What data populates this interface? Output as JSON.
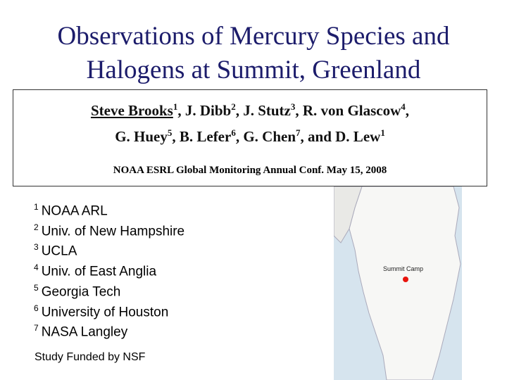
{
  "title": {
    "line1": "Observations of Mercury Species and",
    "line2": "Halogens at Summit, Greenland"
  },
  "authors": {
    "line1": [
      {
        "name": "Steve Brooks",
        "sup": 1,
        "sep": ", "
      },
      {
        "name": "J. Dibb",
        "sup": 2,
        "sep": ", "
      },
      {
        "name": "J. Stutz",
        "sup": 3,
        "sep": ", "
      },
      {
        "name": "R. von Glascow",
        "sup": 4,
        "sep": ","
      }
    ],
    "line2": [
      {
        "name": "G. Huey",
        "sup": 5,
        "sep": ", "
      },
      {
        "name": "B. Lefer",
        "sup": 6,
        "sep": ", "
      },
      {
        "name": "G. Chen",
        "sup": 7,
        "sep": ", and "
      },
      {
        "name": "D. Lew",
        "sup": 1
      }
    ]
  },
  "conference": "NOAA ESRL Global Monitoring Annual Conf. May 15, 2008",
  "affiliations": [
    {
      "num": 1,
      "name": "NOAA ARL"
    },
    {
      "num": 2,
      "name": "Univ. of New Hampshire"
    },
    {
      "num": 3,
      "name": "UCLA"
    },
    {
      "num": 4,
      "name": "Univ. of East Anglia"
    },
    {
      "num": 5,
      "name": "Georgia Tech"
    },
    {
      "num": 6,
      "name": "University of Houston"
    },
    {
      "num": 7,
      "name": "NASA Langley"
    }
  ],
  "funding": "Study Funded by NSF",
  "map": {
    "label": "Summit Camp"
  }
}
